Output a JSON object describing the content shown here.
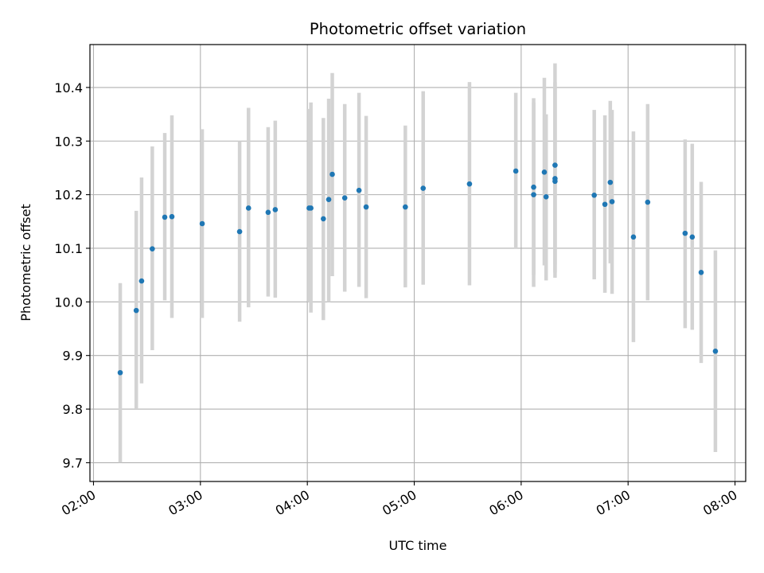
{
  "chart_data": {
    "type": "scatter",
    "title": "Photometric offset variation",
    "xlabel": "UTC time",
    "ylabel": "Photometric offset",
    "x_ticks": [
      "02:00",
      "03:00",
      "04:00",
      "05:00",
      "06:00",
      "07:00",
      "08:00"
    ],
    "y_ticks": [
      "9.7",
      "9.8",
      "9.9",
      "10.0",
      "10.1",
      "10.2",
      "10.3",
      "10.4"
    ],
    "xlim": [
      "01:58",
      "08:06"
    ],
    "ylim": [
      9.665,
      10.48
    ],
    "grid": true,
    "legend": "none",
    "colors": {
      "point": "#1f77b4",
      "errorbar": "#d3d3d3",
      "grid": "#b0b0b0"
    },
    "points": [
      {
        "x": "02:15",
        "y": 9.868,
        "lo": 9.7,
        "hi": 10.035
      },
      {
        "x": "02:24",
        "y": 9.984,
        "lo": 9.8,
        "hi": 10.17
      },
      {
        "x": "02:27",
        "y": 10.039,
        "lo": 9.848,
        "hi": 10.232
      },
      {
        "x": "02:33",
        "y": 10.099,
        "lo": 9.91,
        "hi": 10.29
      },
      {
        "x": "02:40",
        "y": 10.158,
        "lo": 10.003,
        "hi": 10.315
      },
      {
        "x": "02:44",
        "y": 10.159,
        "lo": 9.97,
        "hi": 10.348
      },
      {
        "x": "03:01",
        "y": 10.146,
        "lo": 9.97,
        "hi": 10.322
      },
      {
        "x": "03:22",
        "y": 10.131,
        "lo": 9.963,
        "hi": 10.3
      },
      {
        "x": "03:27",
        "y": 10.175,
        "lo": 9.99,
        "hi": 10.362
      },
      {
        "x": "03:38",
        "y": 10.167,
        "lo": 10.01,
        "hi": 10.326
      },
      {
        "x": "03:42",
        "y": 10.172,
        "lo": 10.008,
        "hi": 10.338
      },
      {
        "x": "04:01",
        "y": 10.175,
        "lo": 10.0,
        "hi": 10.36
      },
      {
        "x": "04:02",
        "y": 10.175,
        "lo": 9.98,
        "hi": 10.372
      },
      {
        "x": "04:09",
        "y": 10.155,
        "lo": 9.966,
        "hi": 10.343
      },
      {
        "x": "04:12",
        "y": 10.191,
        "lo": 10.0,
        "hi": 10.379
      },
      {
        "x": "04:14",
        "y": 10.238,
        "lo": 10.048,
        "hi": 10.427
      },
      {
        "x": "04:21",
        "y": 10.194,
        "lo": 10.019,
        "hi": 10.369
      },
      {
        "x": "04:29",
        "y": 10.208,
        "lo": 10.028,
        "hi": 10.39
      },
      {
        "x": "04:33",
        "y": 10.177,
        "lo": 10.007,
        "hi": 10.347
      },
      {
        "x": "04:55",
        "y": 10.177,
        "lo": 10.027,
        "hi": 10.329
      },
      {
        "x": "05:05",
        "y": 10.212,
        "lo": 10.032,
        "hi": 10.393
      },
      {
        "x": "05:31",
        "y": 10.22,
        "lo": 10.031,
        "hi": 10.41
      },
      {
        "x": "05:57",
        "y": 10.244,
        "lo": 10.1,
        "hi": 10.39
      },
      {
        "x": "06:07",
        "y": 10.2,
        "lo": 10.028,
        "hi": 10.372
      },
      {
        "x": "06:07",
        "y": 10.214,
        "lo": 10.05,
        "hi": 10.38
      },
      {
        "x": "06:13",
        "y": 10.242,
        "lo": 10.068,
        "hi": 10.418
      },
      {
        "x": "06:14",
        "y": 10.196,
        "lo": 10.04,
        "hi": 10.35
      },
      {
        "x": "06:19",
        "y": 10.255,
        "lo": 10.07,
        "hi": 10.445
      },
      {
        "x": "06:19",
        "y": 10.23,
        "lo": 10.055,
        "hi": 10.41
      },
      {
        "x": "06:19",
        "y": 10.225,
        "lo": 10.045,
        "hi": 10.4
      },
      {
        "x": "06:41",
        "y": 10.199,
        "lo": 10.042,
        "hi": 10.358
      },
      {
        "x": "06:47",
        "y": 10.182,
        "lo": 10.017,
        "hi": 10.348
      },
      {
        "x": "06:50",
        "y": 10.223,
        "lo": 10.072,
        "hi": 10.375
      },
      {
        "x": "06:51",
        "y": 10.187,
        "lo": 10.015,
        "hi": 10.358
      },
      {
        "x": "07:03",
        "y": 10.121,
        "lo": 9.925,
        "hi": 10.318
      },
      {
        "x": "07:11",
        "y": 10.186,
        "lo": 10.003,
        "hi": 10.369
      },
      {
        "x": "07:32",
        "y": 10.128,
        "lo": 9.951,
        "hi": 10.303
      },
      {
        "x": "07:36",
        "y": 10.121,
        "lo": 9.948,
        "hi": 10.295
      },
      {
        "x": "07:41",
        "y": 10.055,
        "lo": 9.886,
        "hi": 10.224
      },
      {
        "x": "07:49",
        "y": 9.908,
        "lo": 9.72,
        "hi": 10.096
      }
    ]
  }
}
